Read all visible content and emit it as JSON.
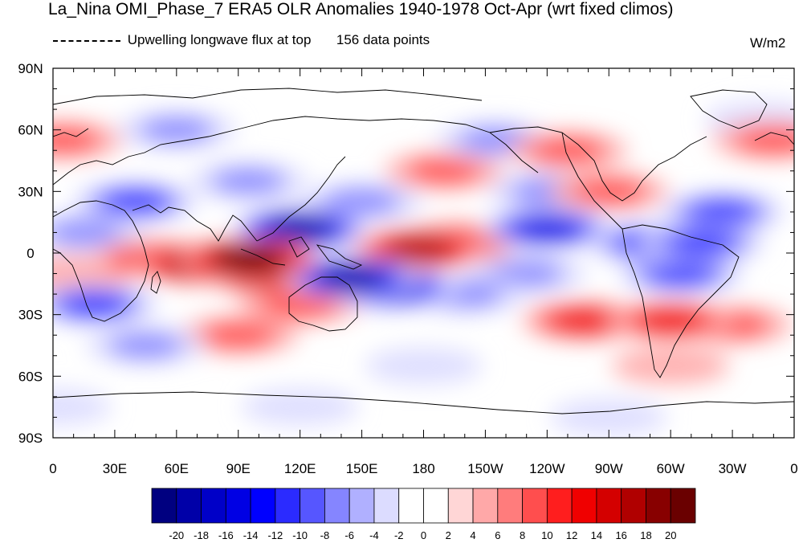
{
  "title": "La_Nina OMI_Phase_7 ERA5 OLR Anomalies 1940-1978 Oct-Apr (wrt fixed climos)",
  "subtitle": {
    "variable": "Upwelling longwave flux at top",
    "count": "156 data points"
  },
  "units": "W/m2",
  "lat_labels": [
    "90N",
    "60N",
    "30N",
    "0",
    "30S",
    "60S",
    "90S"
  ],
  "lon_labels": [
    "0",
    "30E",
    "60E",
    "90E",
    "120E",
    "150E",
    "180",
    "150W",
    "120W",
    "90W",
    "60W",
    "30W",
    "0"
  ],
  "colorbar": {
    "labels": [
      "-20",
      "-18",
      "-16",
      "-14",
      "-12",
      "-10",
      "-8",
      "-6",
      "-4",
      "-2",
      "0",
      "2",
      "4",
      "6",
      "8",
      "10",
      "12",
      "14",
      "16",
      "18",
      "20"
    ],
    "colors": [
      "#000080",
      "#0000a8",
      "#0000c8",
      "#0000e4",
      "#0000ff",
      "#2b2bff",
      "#5656ff",
      "#8585ff",
      "#b0b0ff",
      "#dcdcff",
      "#ffffff",
      "#ffffff",
      "#ffd6d6",
      "#ffa8a8",
      "#ff7c7c",
      "#ff4e4e",
      "#ff1e1e",
      "#f00000",
      "#d40000",
      "#b00000",
      "#880000",
      "#6a0000"
    ]
  },
  "anomalies": [
    {
      "lon": 95,
      "lat": -3,
      "v": 20
    },
    {
      "lon": 70,
      "lat": -5,
      "v": 16
    },
    {
      "lon": 50,
      "lat": -3,
      "v": 10
    },
    {
      "lon": 103,
      "lat": -10,
      "v": 14
    },
    {
      "lon": 120,
      "lat": 12,
      "v": -18
    },
    {
      "lon": 145,
      "lat": -12,
      "v": -18
    },
    {
      "lon": 165,
      "lat": -17,
      "v": -16
    },
    {
      "lon": 178,
      "lat": 2,
      "v": 16
    },
    {
      "lon": 195,
      "lat": 5,
      "v": 12
    },
    {
      "lon": 240,
      "lat": 12,
      "v": -14
    },
    {
      "lon": 290,
      "lat": 5,
      "v": -12
    },
    {
      "lon": 315,
      "lat": 5,
      "v": -12
    },
    {
      "lon": 305,
      "lat": -10,
      "v": -10
    },
    {
      "lon": 325,
      "lat": 20,
      "v": -10
    },
    {
      "lon": 258,
      "lat": -33,
      "v": 10
    },
    {
      "lon": 300,
      "lat": -33,
      "v": 10
    },
    {
      "lon": 40,
      "lat": 25,
      "v": -10
    },
    {
      "lon": 20,
      "lat": -25,
      "v": -12
    },
    {
      "lon": 150,
      "lat": 25,
      "v": -8
    },
    {
      "lon": 200,
      "lat": -20,
      "v": -8
    },
    {
      "lon": 120,
      "lat": -25,
      "v": 8
    },
    {
      "lon": 350,
      "lat": 55,
      "v": 8
    },
    {
      "lon": 5,
      "lat": 55,
      "v": 6
    },
    {
      "lon": 240,
      "lat": 30,
      "v": -6
    },
    {
      "lon": 270,
      "lat": 30,
      "v": 6
    },
    {
      "lon": 330,
      "lat": -35,
      "v": 6
    },
    {
      "lon": 190,
      "lat": 40,
      "v": 6
    },
    {
      "lon": 95,
      "lat": 35,
      "v": -6
    },
    {
      "lon": 60,
      "lat": 60,
      "v": -6
    },
    {
      "lon": 215,
      "lat": 55,
      "v": -6
    },
    {
      "lon": 250,
      "lat": 50,
      "v": 6
    },
    {
      "lon": 345,
      "lat": 65,
      "v": -4
    },
    {
      "lon": 90,
      "lat": -40,
      "v": 6
    },
    {
      "lon": 15,
      "lat": 10,
      "v": -6
    },
    {
      "lon": 10,
      "lat": -10,
      "v": 4
    },
    {
      "lon": 230,
      "lat": -10,
      "v": -6
    },
    {
      "lon": 45,
      "lat": -45,
      "v": -6
    },
    {
      "lon": 180,
      "lat": -55,
      "v": -4
    },
    {
      "lon": 300,
      "lat": -55,
      "v": 4
    },
    {
      "lon": 120,
      "lat": -75,
      "v": -4
    },
    {
      "lon": 0,
      "lat": -75,
      "v": -4
    },
    {
      "lon": 270,
      "lat": -80,
      "v": -4
    }
  ],
  "icons": [
    "coastline-outline"
  ]
}
